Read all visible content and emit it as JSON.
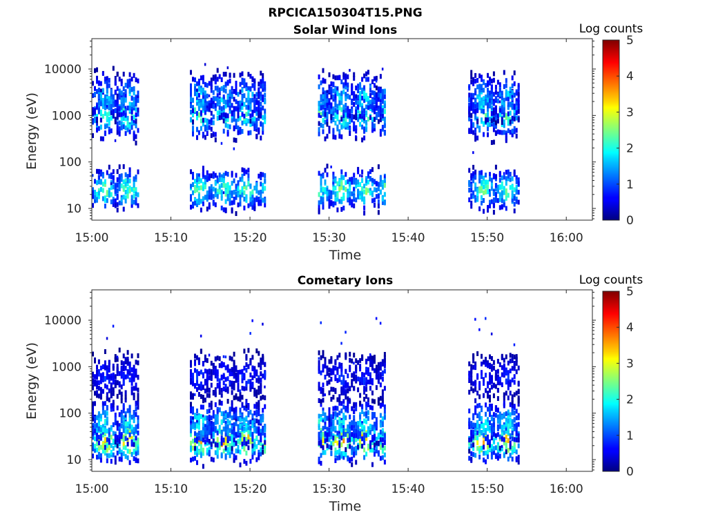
{
  "figure_title": "RPCICA150304T15.PNG",
  "chart_data": [
    {
      "type": "heatmap",
      "title": "Solar Wind Ions",
      "xlabel": "Time",
      "ylabel": "Energy (eV)",
      "x_tick_labels": [
        "15:00",
        "15:10",
        "15:20",
        "15:30",
        "15:40",
        "15:50",
        "16:00"
      ],
      "x_tick_minutes": [
        0,
        10,
        20,
        30,
        40,
        50,
        60
      ],
      "xlim_minutes": [
        0,
        63.3
      ],
      "yscale": "log",
      "ylim": [
        5.6,
        45000
      ],
      "y_tick_labels": [
        "10",
        "100",
        "1000",
        "10000"
      ],
      "y_tick_values": [
        10,
        100,
        1000,
        10000
      ],
      "colorbar": {
        "label": "Log counts",
        "range": [
          0,
          5
        ],
        "tick_labels": [
          "0",
          "1",
          "2",
          "3",
          "4",
          "5"
        ],
        "colormap": "jet"
      },
      "activity_intervals_minutes": [
        [
          0,
          5.9
        ],
        [
          12.4,
          21.8
        ],
        [
          28.6,
          37.0
        ],
        [
          47.6,
          53.9
        ]
      ],
      "populations": [
        {
          "energy_eV": 25,
          "peak_log_counts": 2.8
        },
        {
          "energy_eV": 1000,
          "peak_log_counts": 2.6
        },
        {
          "energy_eV": 2500,
          "peak_log_counts": 2.0
        }
      ]
    },
    {
      "type": "heatmap",
      "title": "Cometary Ions",
      "xlabel": "Time",
      "ylabel": "Energy (eV)",
      "x_tick_labels": [
        "15:00",
        "15:10",
        "15:20",
        "15:30",
        "15:40",
        "15:50",
        "16:00"
      ],
      "x_tick_minutes": [
        0,
        10,
        20,
        30,
        40,
        50,
        60
      ],
      "xlim_minutes": [
        0,
        63.3
      ],
      "yscale": "log",
      "ylim": [
        5.6,
        45000
      ],
      "y_tick_labels": [
        "10",
        "100",
        "1000",
        "10000"
      ],
      "y_tick_values": [
        10,
        100,
        1000,
        10000
      ],
      "colorbar": {
        "label": "Log counts",
        "range": [
          0,
          5
        ],
        "tick_labels": [
          "0",
          "1",
          "2",
          "3",
          "4",
          "5"
        ],
        "colormap": "jet"
      },
      "activity_intervals_minutes": [
        [
          0,
          5.9
        ],
        [
          12.4,
          21.8
        ],
        [
          28.6,
          37.0
        ],
        [
          47.6,
          53.9
        ]
      ],
      "populations": [
        {
          "energy_eV": 25,
          "peak_log_counts": 3.9
        },
        {
          "energy_eV": 60,
          "peak_log_counts": 2.2
        },
        {
          "energy_eV": 600,
          "peak_log_counts": 1.0
        }
      ]
    }
  ]
}
